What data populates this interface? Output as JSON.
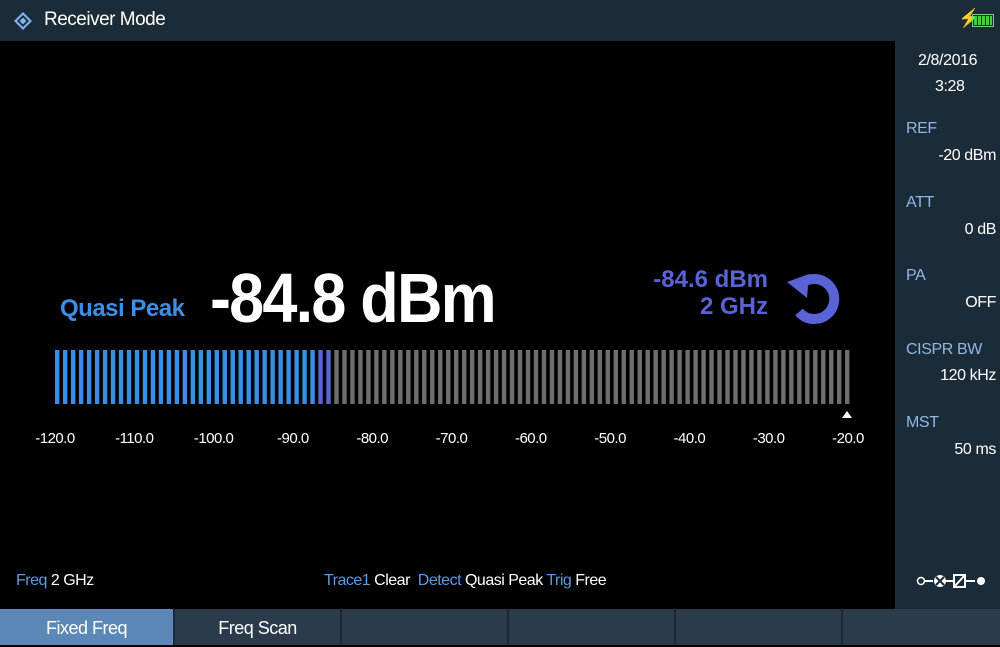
{
  "titlebar": {
    "title": "Receiver Mode",
    "icons": [
      "rohde-schwarz-logo-icon",
      "charging-bolt-icon",
      "battery-icon"
    ]
  },
  "sidebar": {
    "date": "2/8/2016",
    "time": "3:28",
    "ref_label": "REF",
    "ref_value": "-20 dBm",
    "att_label": "ATT",
    "att_value": "0 dB",
    "pa_label": "PA",
    "pa_value": "OFF",
    "bw_label": "CISPR BW",
    "bw_value": "120 kHz",
    "mst_label": "MST",
    "mst_value": "50 ms"
  },
  "measurement": {
    "detector": "Quasi Peak",
    "level": "-84.8 dBm",
    "max_hold_level": "-84.6 dBm",
    "max_hold_freq": "2 GHz",
    "reset_icon": "reset-arrow-icon"
  },
  "bar_graph": {
    "min": -120,
    "max": -20,
    "current": -84.8,
    "ticks": [
      "-120.0",
      "-110.0",
      "-100.0",
      "-90.0",
      "-80.0",
      "-70.0",
      "-60.0",
      "-50.0",
      "-40.0",
      "-30.0",
      "-20.0"
    ],
    "colors": {
      "active": "#3a8ee8",
      "active_edge": "#5a63d6",
      "inactive": "#6e6e6e"
    }
  },
  "status_line": {
    "freq_label": "Freq",
    "freq_value": "2 GHz",
    "trace_label": "Trace1",
    "trace_value": "Clear",
    "detect_label": "Detect",
    "detect_value": "Quasi Peak",
    "trig_label": "Trig",
    "trig_value": "Free"
  },
  "softkeys": [
    "Fixed Freq",
    "Freq Scan",
    "",
    "",
    "",
    ""
  ]
}
